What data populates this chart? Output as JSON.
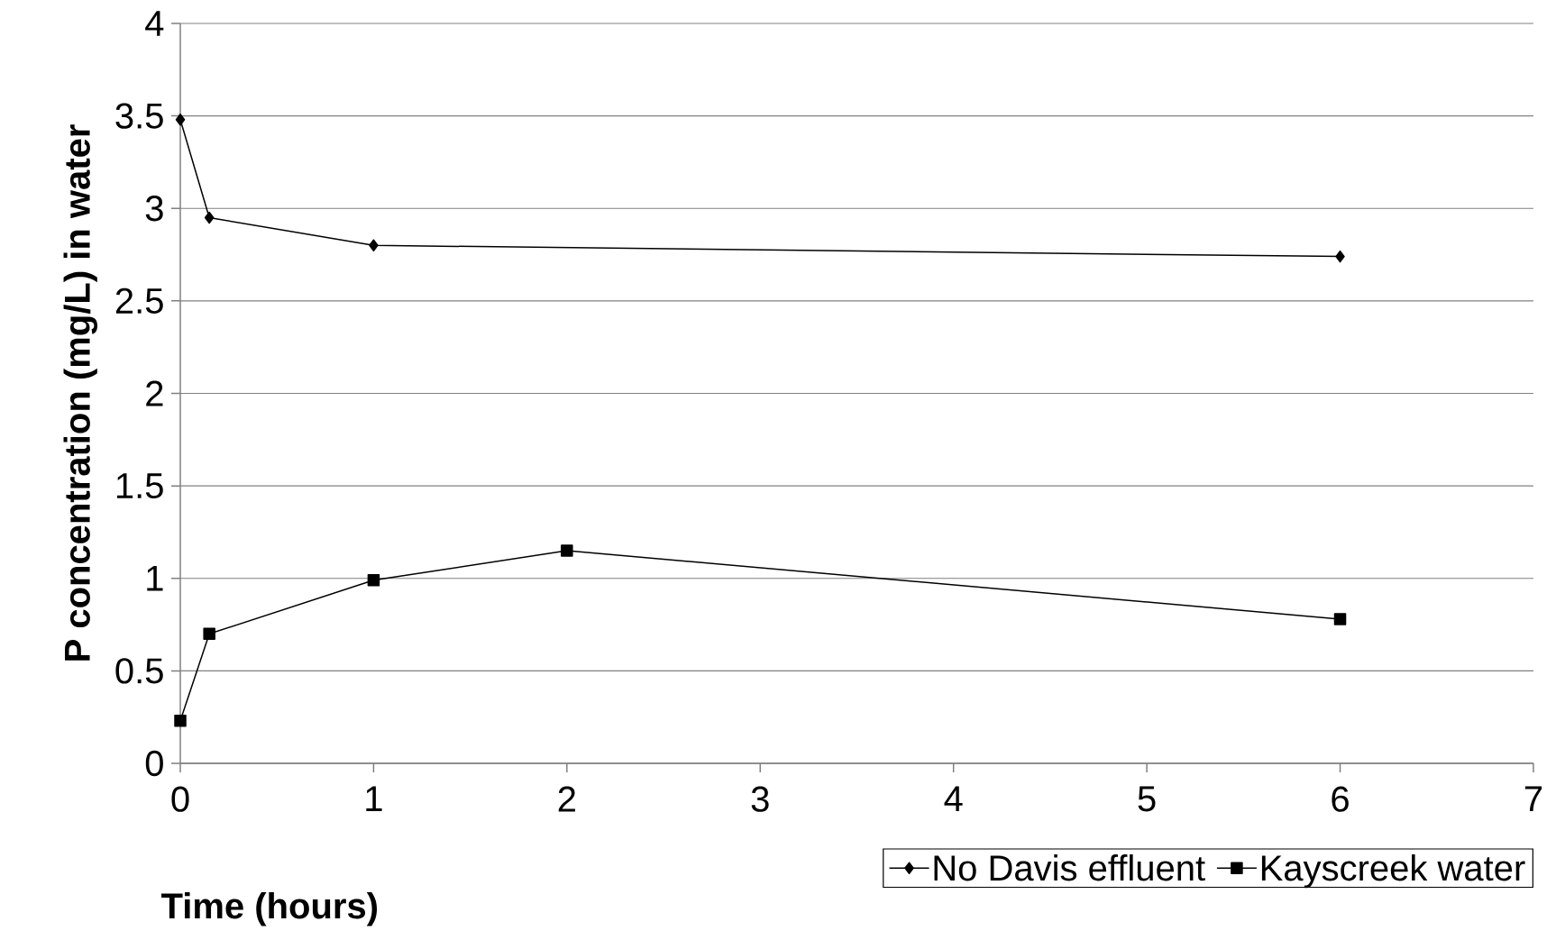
{
  "chart_data": {
    "type": "line",
    "xlabel": "Time (hours)",
    "ylabel": "P concentration (mg/L) in water",
    "xlim": [
      0,
      7
    ],
    "xticks": [
      0,
      1,
      2,
      3,
      4,
      5,
      6,
      7
    ],
    "ylim": [
      0,
      4
    ],
    "yticks": [
      0,
      0.5,
      1,
      1.5,
      2,
      2.5,
      3,
      3.5,
      4
    ],
    "grid": "y",
    "legend": "bottom right",
    "line_style": "solid",
    "series": [
      {
        "name": "No Davis effluent",
        "color": "#000000",
        "marker": "diamond",
        "x": [
          0,
          0.15,
          1,
          6
        ],
        "values": [
          3.48,
          2.95,
          2.8,
          2.74
        ]
      },
      {
        "name": "Kayscreek water",
        "color": "#000000",
        "marker": "square",
        "x": [
          0,
          0.15,
          1,
          2,
          6
        ],
        "values": [
          0.23,
          0.7,
          0.99,
          1.15,
          0.78
        ]
      }
    ]
  }
}
